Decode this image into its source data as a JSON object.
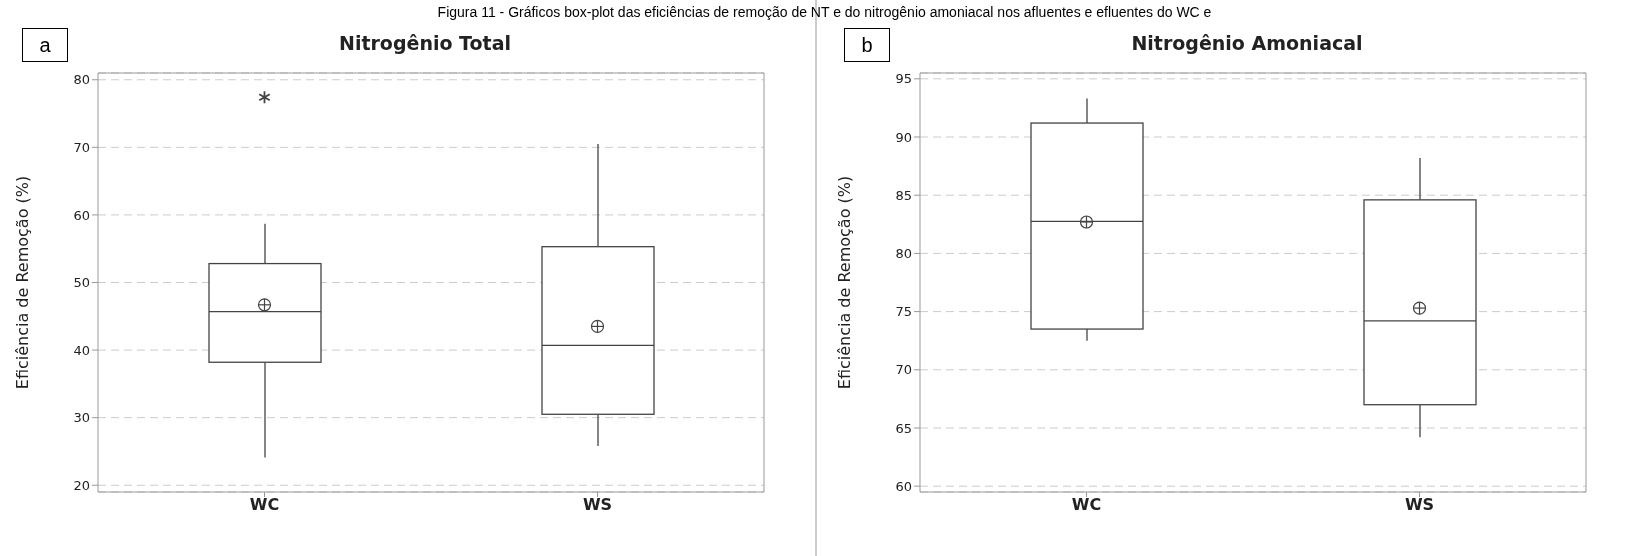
{
  "chart_data": [
    {
      "type": "box",
      "title": "Nitrogênio Total",
      "ylabel": "Eficiência de Remoção (%)",
      "categories": [
        "WC",
        "WS"
      ],
      "boxes": [
        {
          "low": 24.1,
          "q1": 38.2,
          "median": 45.7,
          "q3": 52.8,
          "high": 58.7,
          "mean": 46.7,
          "outliers": [
            77.4
          ]
        },
        {
          "low": 25.8,
          "q1": 30.5,
          "median": 40.7,
          "q3": 55.3,
          "high": 70.5,
          "mean": 43.5
        }
      ],
      "ylim": [
        19,
        81
      ],
      "yticks": [
        20,
        30,
        40,
        50,
        60,
        70,
        80
      ],
      "grid": "y",
      "annotations": [
        "a",
        "Figura 11 - Gráficos box-plot das eficiências de remoção de NT e do nitrogênio amoniacal nos afluentes e efluentes do WC e"
      ]
    },
    {
      "type": "box",
      "title": "Nitrogênio Amoniacal",
      "ylabel": "Eficiência de Remoção (%)",
      "categories": [
        "WC",
        "WS"
      ],
      "boxes": [
        {
          "low": 72.5,
          "q1": 73.5,
          "median": 82.75,
          "q3": 91.2,
          "high": 93.3,
          "mean": 82.7
        },
        {
          "low": 64.2,
          "q1": 67.0,
          "median": 74.2,
          "q3": 84.6,
          "high": 88.2,
          "mean": 75.3
        }
      ],
      "ylim": [
        59.5,
        95.5
      ],
      "yticks": [
        60,
        65,
        70,
        75,
        80,
        85,
        90,
        95
      ],
      "grid": "y",
      "annotations": [
        "b"
      ]
    }
  ]
}
